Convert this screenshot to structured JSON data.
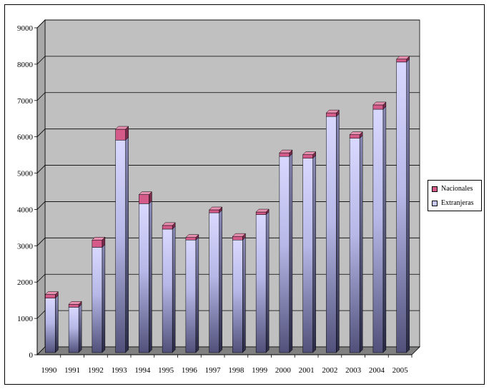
{
  "chart_data": {
    "type": "bar",
    "stacked": true,
    "three_d": true,
    "categories": [
      "1990",
      "1991",
      "1992",
      "1993",
      "1994",
      "1995",
      "1996",
      "1997",
      "1998",
      "1999",
      "2000",
      "2001",
      "2002",
      "2003",
      "2004",
      "2005"
    ],
    "series": [
      {
        "name": "Extranjeras",
        "color": "#c8c8ff",
        "values": [
          1500,
          1250,
          2900,
          5850,
          4100,
          3400,
          3100,
          3850,
          3100,
          3800,
          5400,
          5350,
          6500,
          5900,
          6700,
          8000
        ]
      },
      {
        "name": "Nacionales",
        "color": "#d45a8a",
        "values": [
          100,
          80,
          200,
          300,
          250,
          100,
          70,
          80,
          100,
          70,
          100,
          100,
          100,
          100,
          120,
          80
        ]
      }
    ],
    "ylim": [
      0,
      9000
    ],
    "yticks": [
      "0",
      "1000",
      "2000",
      "3000",
      "4000",
      "5000",
      "6000",
      "7000",
      "8000",
      "9000"
    ],
    "grid": true,
    "legend_position": "right",
    "wall_color": "#c0c0c0",
    "floor_color": "#808080"
  },
  "legend": {
    "items": [
      {
        "name": "Nacionales",
        "color": "#d45a8a"
      },
      {
        "name": "Extranjeras",
        "color": "#c8c8ff"
      }
    ]
  }
}
